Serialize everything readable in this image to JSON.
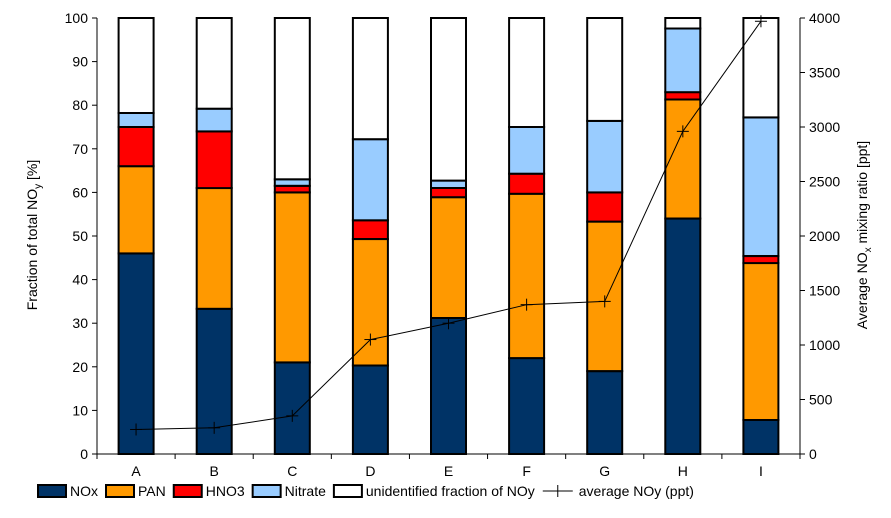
{
  "chart_data": {
    "type": "bar",
    "stacked": true,
    "categories": [
      "A",
      "B",
      "C",
      "D",
      "E",
      "F",
      "G",
      "H",
      "I"
    ],
    "ylabel": "Fraction of total NO",
    "ylabel_sub": "y",
    "ylabel_unit": " [%]",
    "y2label": "Average NO",
    "y2label_sub": "x",
    "y2label_unit": " mixing ratio [ppt]",
    "ylim": [
      0,
      100
    ],
    "y2lim": [
      0,
      4000
    ],
    "yticks": [
      "0",
      "10",
      "20",
      "30",
      "40",
      "50",
      "60",
      "70",
      "80",
      "90",
      "100"
    ],
    "y2ticks": [
      "0",
      "500",
      "1000",
      "1500",
      "2000",
      "2500",
      "3000",
      "3500",
      "4000"
    ],
    "grid": false,
    "legend_position": "bottom",
    "series": [
      {
        "name": "NOx",
        "color": "#003366",
        "values": [
          46,
          33.3,
          21,
          20.3,
          31.2,
          22,
          19,
          54,
          7.8
        ]
      },
      {
        "name": "PAN",
        "color": "#FF9900",
        "values": [
          20,
          27.7,
          39,
          29,
          27.7,
          37.7,
          34.3,
          27.3,
          36
        ]
      },
      {
        "name": "HNO3",
        "color": "#FF0000",
        "values": [
          9,
          13,
          1.5,
          4.3,
          2.1,
          4.6,
          6.7,
          1.7,
          1.6
        ]
      },
      {
        "name": "Nitrate",
        "color": "#99CCFF",
        "values": [
          3.2,
          5.2,
          1.5,
          18.6,
          1.7,
          10.7,
          16.4,
          14.6,
          31.8
        ]
      },
      {
        "name": "unidentified fraction of NOy",
        "color": "#FFFFFF",
        "values": [
          21.8,
          20.8,
          37,
          27.8,
          37.3,
          25,
          23.6,
          2.4,
          22.8
        ]
      }
    ],
    "line_series": {
      "name": "average NOy (ppt)",
      "axis": "secondary",
      "color": "#000000",
      "values": [
        225,
        240,
        350,
        1050,
        1200,
        1370,
        1400,
        2960,
        3970
      ]
    }
  }
}
